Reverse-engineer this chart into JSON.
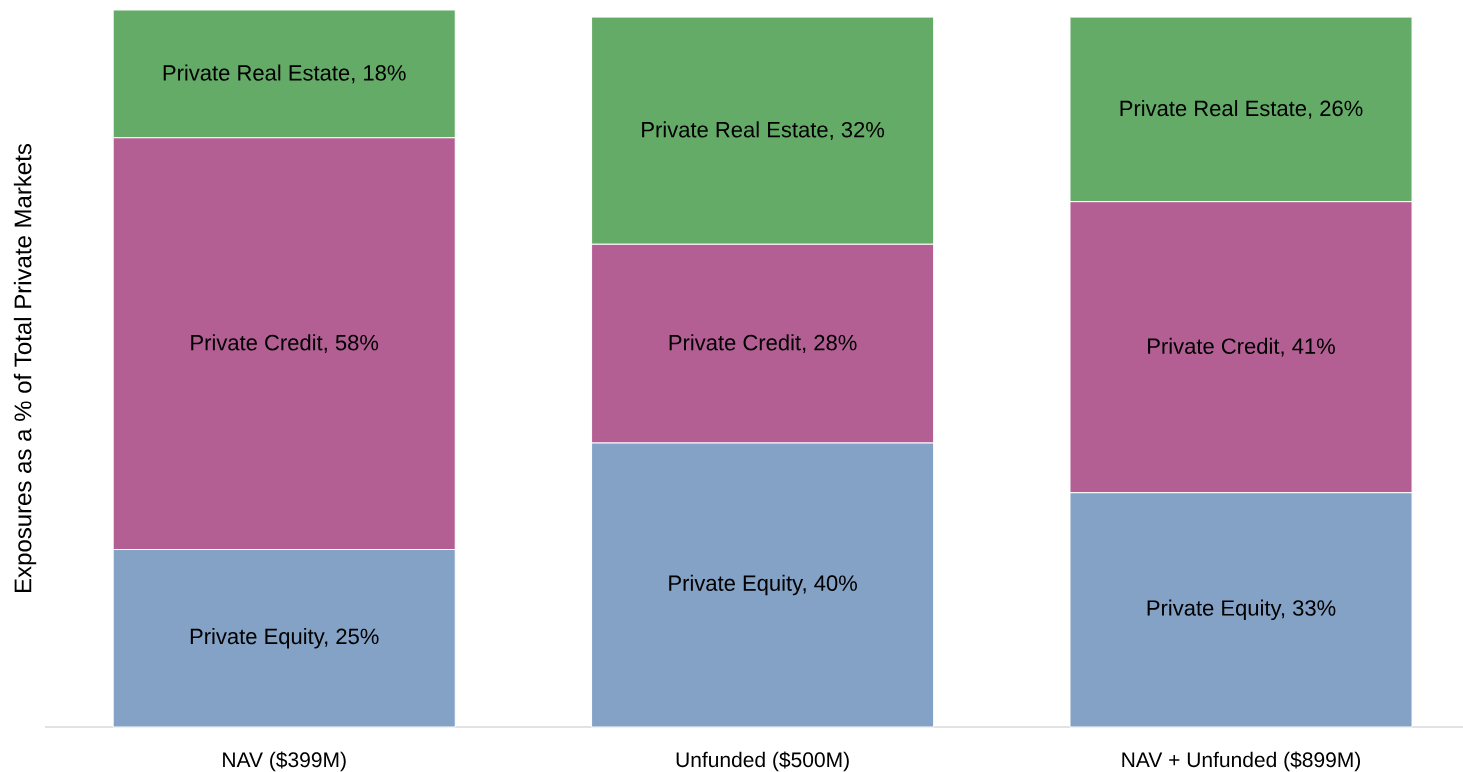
{
  "chart_data": {
    "type": "bar",
    "stacked": true,
    "ylabel": "Exposures as a % of Total Private Markets",
    "categories": [
      "NAV ($399M)",
      "Unfunded ($500M)",
      "NAV + Unfunded ($899M)"
    ],
    "series": [
      {
        "color": "#83a2c5",
        "values": [
          25,
          40,
          33
        ],
        "value_labels": [
          "Private Equity, 25%",
          "Private Equity, 40%",
          "Private Equity, 33%"
        ]
      },
      {
        "color": "#b35f94",
        "values": [
          58,
          28,
          41
        ],
        "value_labels": [
          "Private Credit, 58%",
          "Private Credit, 28%",
          "Private Credit, 41%"
        ]
      },
      {
        "color": "#64ab68",
        "values": [
          18,
          32,
          26
        ],
        "value_labels": [
          "Private Real Estate, 18%",
          "Private Real Estate, 32%",
          "Private Real Estate, 26%"
        ]
      }
    ]
  }
}
